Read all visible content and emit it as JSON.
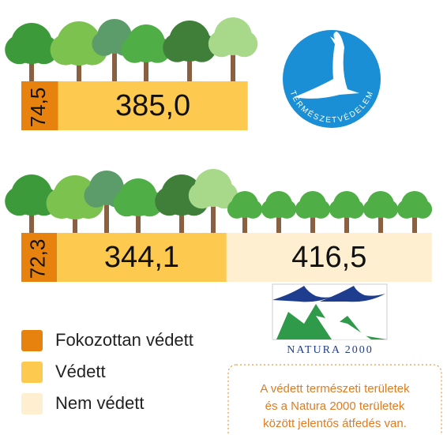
{
  "chart_data": {
    "type": "stacked-bar-horizontal",
    "categories": [
      null,
      null
    ],
    "series": [
      {
        "name": "Fokozottan védett",
        "color": "#e8820e",
        "values": [
          74.5,
          72.3
        ],
        "value_labels": [
          "74,5",
          "72,3"
        ]
      },
      {
        "name": "Védett",
        "color": "#fdc94f",
        "values": [
          385.0,
          344.1
        ],
        "value_labels": [
          "385,0",
          "344,1"
        ]
      },
      {
        "name": "Nem védett",
        "color": "#fdefcf",
        "values": [
          null,
          416.5
        ],
        "value_labels": [
          null,
          "416,5"
        ]
      }
    ],
    "annotations": [
      "A védett természeti területek",
      "és a Natura 2000 területek",
      "között jelentős átfedés van."
    ]
  },
  "logos": {
    "termeszetvedelem": "TERMÉSZETVÉDELEM",
    "natura": "NATURA 2000"
  }
}
